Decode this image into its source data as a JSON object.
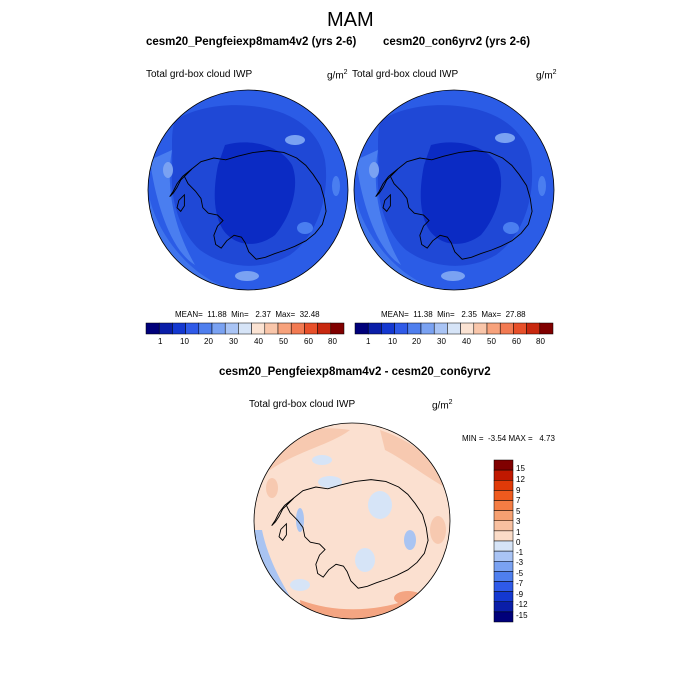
{
  "page": {
    "title": "MAM"
  },
  "colors": {
    "ocean_blue": "#2b5ce6",
    "deep_blue": "#0b2bc4",
    "light_blue": "#4a7ef0",
    "pale_blue": "#a9c4f2",
    "peach": "#f7c9b0",
    "light_peach": "#fbe0d0",
    "salmon": "#f4a582"
  },
  "panels": [
    {
      "title": "cesm20_Pengfeiexp8mam4v2 (yrs 2-6)",
      "variable": "Total grd-box cloud IWP",
      "units": "g/m",
      "units_sup": "2",
      "stats": "MEAN=  11.88  Min=   2.37  Max=  32.48",
      "colorbar_ticks": [
        "1",
        "10",
        "20",
        "30",
        "40",
        "50",
        "60",
        "80"
      ]
    },
    {
      "title": "cesm20_con6yrv2 (yrs 2-6)",
      "variable": "Total grd-box cloud IWP",
      "units": "g/m",
      "units_sup": "2",
      "stats": "MEAN=  11.38  Min=   2.35  Max=  27.88",
      "colorbar_ticks": [
        "1",
        "10",
        "20",
        "30",
        "40",
        "50",
        "60",
        "80"
      ]
    }
  ],
  "diff_panel": {
    "title": "cesm20_Pengfeiexp8mam4v2 - cesm20_con6yrv2",
    "variable": "Total grd-box cloud IWP",
    "units": "g/m",
    "units_sup": "2",
    "stats": "MIN =  -3.54 MAX =   4.73",
    "colorbar_ticks": [
      "15",
      "12",
      "9",
      "7",
      "5",
      "3",
      "1",
      "0",
      "-1",
      "-3",
      "-5",
      "-7",
      "-9",
      "-12",
      "-15"
    ]
  },
  "abs_colorbar_colors": [
    "#00007a",
    "#0a1ea8",
    "#1438d0",
    "#2f5ae8",
    "#4f7fee",
    "#7aa2f2",
    "#a9c4f5",
    "#d6e4f7",
    "#fbe3d3",
    "#f9c6aa",
    "#f7a27c",
    "#f27a52",
    "#e8502a",
    "#c8280f",
    "#800000"
  ],
  "diff_colorbar_colors": [
    "#800000",
    "#c01800",
    "#e03a08",
    "#ee5a1e",
    "#f47d44",
    "#f6a071",
    "#f8c0a0",
    "#fbdcc8",
    "#d6e4f7",
    "#a9c4f5",
    "#7aa2f2",
    "#4f7fee",
    "#2f5ae8",
    "#1438d0",
    "#0a1ea8",
    "#00007a"
  ]
}
